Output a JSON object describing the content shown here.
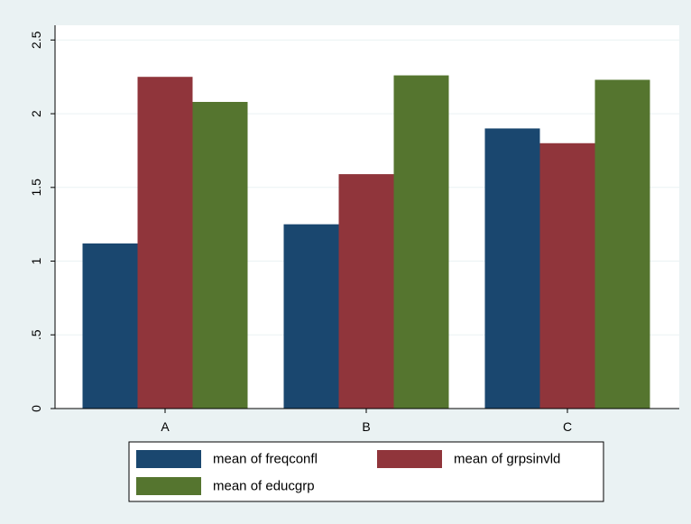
{
  "chart_data": {
    "type": "bar",
    "title": "",
    "xlabel": "",
    "ylabel": "",
    "categories": [
      "A",
      "B",
      "C"
    ],
    "series": [
      {
        "name": "mean of freqconfl",
        "color": "#1a476f",
        "values": [
          1.12,
          1.25,
          1.9
        ]
      },
      {
        "name": "mean of grpsinvld",
        "color": "#90353b",
        "values": [
          2.25,
          1.59,
          1.8
        ]
      },
      {
        "name": "mean of educgrp",
        "color": "#55752f",
        "values": [
          2.08,
          2.26,
          2.23
        ]
      }
    ],
    "ylim": [
      0,
      2.6
    ],
    "yticks": [
      0,
      0.5,
      1,
      1.5,
      2,
      2.5
    ],
    "ytick_labels": [
      "0",
      ".5",
      "1",
      "1.5",
      "2",
      "2.5"
    ],
    "grid": true,
    "legend_position": "bottom"
  },
  "colors": {
    "background": "#eaf2f3",
    "plot_area": "#ffffff",
    "gridline": "#eaf2f3"
  }
}
